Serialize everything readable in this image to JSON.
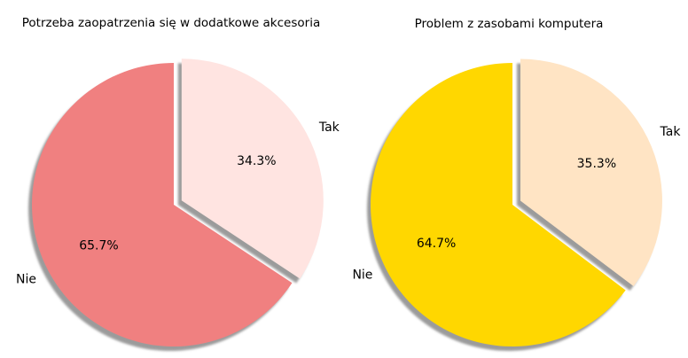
{
  "chart_data": [
    {
      "type": "pie",
      "title": "Potrzeba zaopatrzenia się w dodatkowe akcesoria",
      "labels": [
        "Tak",
        "Nie"
      ],
      "values": [
        34.3,
        65.7
      ],
      "value_labels": [
        "34.3%",
        "65.7%"
      ],
      "colors": [
        "#ffe4e1",
        "#f08080"
      ],
      "explode": [
        "Tak"
      ],
      "shadow": true,
      "start": "top, clockwise"
    },
    {
      "type": "pie",
      "title": "Problem z zasobami komputera",
      "labels": [
        "Tak",
        "Nie"
      ],
      "values": [
        35.3,
        64.7
      ],
      "value_labels": [
        "35.3%",
        "64.7%"
      ],
      "colors": [
        "#ffe4c4",
        "#ffd700"
      ],
      "explode": [
        "Tak"
      ],
      "shadow": true,
      "start": "top, clockwise"
    }
  ]
}
